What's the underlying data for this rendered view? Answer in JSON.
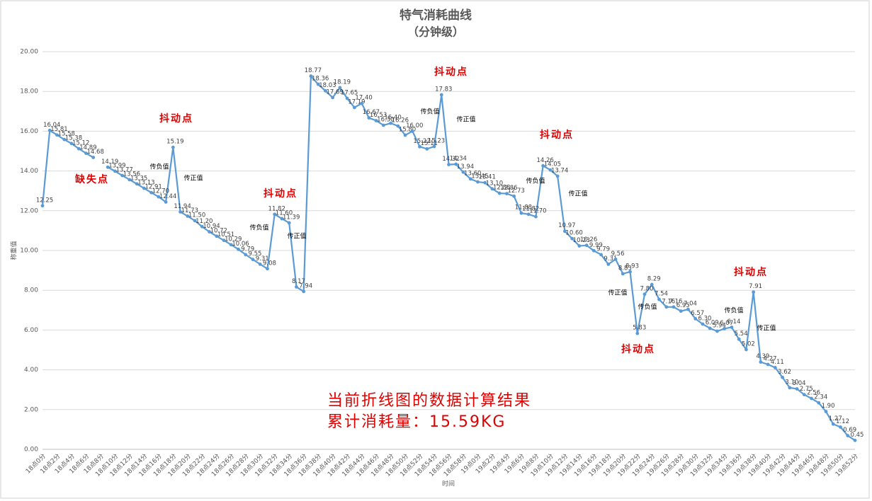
{
  "chart_data": {
    "type": "line",
    "title": "特气消耗曲线",
    "subtitle": "（分钟级）",
    "y_label": "称重值",
    "x_label": "时间",
    "ylim": [
      0,
      20
    ],
    "yticks": [
      {
        "value": 0,
        "label": "0.00"
      },
      {
        "value": 2,
        "label": "2.00"
      },
      {
        "value": 4,
        "label": "4.00"
      },
      {
        "value": 6,
        "label": "6.00"
      },
      {
        "value": 8,
        "label": "8.00"
      },
      {
        "value": 10,
        "label": "10.00"
      },
      {
        "value": 12,
        "label": "12.00"
      },
      {
        "value": 14,
        "label": "14.00"
      },
      {
        "value": 16,
        "label": "16.00"
      },
      {
        "value": 18,
        "label": "18.00"
      },
      {
        "value": 20,
        "label": "20.00"
      }
    ],
    "grid": true,
    "color": "#5b9bd5",
    "categories": [
      "18点0分",
      null,
      "18点2分",
      null,
      "18点4分",
      null,
      "18点6分",
      null,
      "18点8分",
      null,
      "18点10分",
      null,
      "18点12分",
      null,
      "18点14分",
      null,
      "18点16分",
      null,
      "18点18分",
      null,
      "18点20分",
      null,
      "18点22分",
      null,
      "18点24分",
      null,
      "18点26分",
      null,
      "18点28分",
      null,
      "18点30分",
      null,
      "18点32分",
      null,
      "18点34分",
      null,
      "18点36分",
      null,
      "18点38分",
      null,
      "18点40分",
      null,
      "18点42分",
      null,
      "18点44分",
      null,
      "18点46分",
      null,
      "18点48分",
      null,
      "18点50分",
      null,
      "18点52分",
      null,
      "18点54分",
      null,
      "18点56分",
      null,
      "18点58分",
      null,
      "19点0分",
      null,
      "19点2分",
      null,
      "19点4分",
      null,
      "19点6分",
      null,
      "19点8分",
      null,
      "19点10分",
      null,
      "19点12分",
      null,
      "19点14分",
      null,
      "19点16分",
      null,
      "19点18分",
      null,
      "19点20分",
      null,
      "19点22分",
      null,
      "19点24分",
      null,
      "19点26分",
      null,
      "19点28分",
      null,
      "19点30分",
      null,
      "19点32分",
      null,
      "19点34分",
      null,
      "19点36分",
      null,
      "19点38分",
      null,
      "19点40分",
      null,
      "19点42分",
      null,
      "19点44分",
      null,
      "19点46分",
      null,
      "19点48分",
      null,
      "19点50分",
      null,
      "19点52分"
    ],
    "values": [
      12.25,
      16.04,
      15.81,
      15.58,
      15.38,
      15.12,
      14.89,
      14.68,
      null,
      14.19,
      13.99,
      13.77,
      13.56,
      13.35,
      13.13,
      12.91,
      12.7,
      12.44,
      15.19,
      11.94,
      11.73,
      11.5,
      11.2,
      10.94,
      10.72,
      10.51,
      10.29,
      10.06,
      9.79,
      9.55,
      9.31,
      9.08,
      11.82,
      11.6,
      11.39,
      8.17,
      7.94,
      18.77,
      18.36,
      18.03,
      17.69,
      18.19,
      17.65,
      17.19,
      17.4,
      16.67,
      16.53,
      16.3,
      16.4,
      16.26,
      15.8,
      16.0,
      15.22,
      15.11,
      15.23,
      17.83,
      14.32,
      14.34,
      13.94,
      13.6,
      13.45,
      13.41,
      13.1,
      12.88,
      12.86,
      12.73,
      11.88,
      11.82,
      11.7,
      14.26,
      14.05,
      13.74,
      10.97,
      10.6,
      10.23,
      10.26,
      9.99,
      9.79,
      9.31,
      9.56,
      8.83,
      8.93,
      5.83,
      7.8,
      8.29,
      7.54,
      7.16,
      7.16,
      6.95,
      7.04,
      6.57,
      6.3,
      6.09,
      5.94,
      6.07,
      6.14,
      5.54,
      5.02,
      7.91,
      4.39,
      4.27,
      4.11,
      3.62,
      3.1,
      3.04,
      2.75,
      2.56,
      2.34,
      1.9,
      1.27,
      1.12,
      0.69,
      0.45
    ],
    "value_labels": [
      "12.25",
      "16.04",
      "15.81",
      "15.58",
      "15.38",
      "15.12",
      "14.89",
      "14.68",
      null,
      "14.19",
      "13.99",
      "13.77",
      "13.56",
      "13.35",
      "13.13",
      "12.91",
      "12.70",
      "12.44",
      "15.19",
      "11.94",
      "11.73",
      "11.50",
      "11.20",
      "10.94",
      "10.72",
      "10.51",
      "10.29",
      "10.06",
      "9.79",
      "9.55",
      "9.31",
      "9.08",
      "11.82",
      "11.60",
      "11.39",
      "8.17",
      "7.94",
      "18.77",
      "18.36",
      "18.03",
      "17.69",
      "18.19",
      "17.65",
      "17.19",
      "17.40",
      "16.67",
      "16.53",
      "16.30",
      "16.40",
      "16.26",
      "15.80",
      "16.00",
      "15.22",
      "15.11",
      "15.23",
      "17.83",
      "14.32",
      "14.34",
      "13.94",
      "13.60",
      "13.45",
      "13.41",
      "13.10",
      "12.88",
      "12.86",
      "12.73",
      "11.88",
      "11.82",
      "11.70",
      "14.26",
      "14.05",
      "13.74",
      "10.97",
      "10.60",
      "10.23",
      "10.26",
      "9.99",
      "9.79",
      "9.31",
      "9.56",
      "8.83",
      "8.93",
      "5.83",
      "7.80",
      "8.29",
      "7.54",
      "7.16",
      "7.16",
      "6.95",
      "7.04",
      "6.57",
      "6.30",
      "6.09",
      "5.94",
      "6.07",
      "6.14",
      "5.54",
      "5.02",
      "7.91",
      "4.39",
      "4.27",
      "4.11",
      "3.62",
      "3.10",
      "3.04",
      "2.75",
      "2.56",
      "2.34",
      "1.90",
      "1.27",
      "1.12",
      "0.69",
      "0.45"
    ],
    "annotations": [
      "抖动点",
      "抖动点",
      "抖动点",
      "抖动点",
      "抖动点",
      "抖动点",
      "缺失点",
      "传负值",
      "传负值",
      "传负值",
      "传负值",
      "传负值",
      "传负值",
      "传正值",
      "传正值",
      "传正值",
      "传正值",
      "传正值",
      "传正值"
    ],
    "result_text": [
      "当前折线图的数据计算结果",
      "累计消耗量：15.59KG"
    ]
  }
}
